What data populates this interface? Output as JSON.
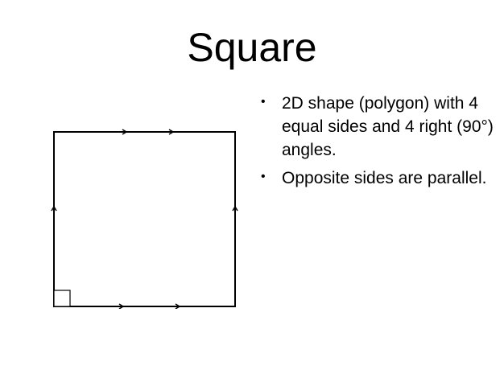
{
  "slide": {
    "title": "Square",
    "bullets": [
      {
        "marker": "•",
        "text": "2D shape (polygon) with 4 equal sides and 4 right (90°) angles."
      },
      {
        "marker": "•",
        "text": "Opposite sides are parallel."
      }
    ]
  },
  "colors": {
    "background": "#ffffff",
    "text": "#000000",
    "shape_stroke": "#000000"
  },
  "figure": {
    "shape": "square",
    "marks": "right-angle-marker, parallel-tick-marks"
  }
}
